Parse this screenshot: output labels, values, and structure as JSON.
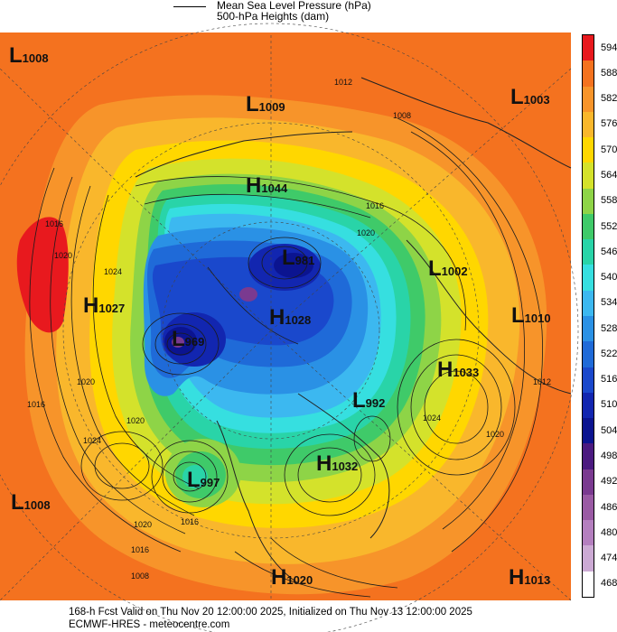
{
  "legend": {
    "mslp_label": "Mean Sea Level Pressure (hPa)",
    "heights_label": "500-hPa Heights (dam)"
  },
  "colorbar": {
    "ticks": [
      "594",
      "588",
      "582",
      "576",
      "570",
      "564",
      "558",
      "552",
      "546",
      "540",
      "534",
      "528",
      "522",
      "516",
      "510",
      "504",
      "498",
      "492",
      "486",
      "480",
      "474",
      "468"
    ],
    "colors": [
      "#e8191e",
      "#f4721f",
      "#f7942a",
      "#f9b72c",
      "#ffd700",
      "#d4e22b",
      "#8ed447",
      "#3fca69",
      "#29d4a8",
      "#36dfe0",
      "#3cb8f0",
      "#2a91e5",
      "#1f6ad8",
      "#1a48cc",
      "#1226b0",
      "#0b1490",
      "#4b1a80",
      "#7a3a90",
      "#9a5aa4",
      "#b47fbf",
      "#ccaad4",
      "#ffffff"
    ]
  },
  "pressure_centers": [
    {
      "type": "L",
      "value": "1008"
    },
    {
      "type": "L",
      "value": "1009"
    },
    {
      "type": "L",
      "value": "1003"
    },
    {
      "type": "H",
      "value": "1044"
    },
    {
      "type": "L",
      "value": "981"
    },
    {
      "type": "L",
      "value": "1002"
    },
    {
      "type": "H",
      "value": "1027"
    },
    {
      "type": "H",
      "value": "1028"
    },
    {
      "type": "L",
      "value": "1010"
    },
    {
      "type": "L",
      "value": "969"
    },
    {
      "type": "H",
      "value": "1033"
    },
    {
      "type": "L",
      "value": "992"
    },
    {
      "type": "H",
      "value": "1032"
    },
    {
      "type": "L",
      "value": "997"
    },
    {
      "type": "L",
      "value": "1008"
    },
    {
      "type": "H",
      "value": "1020"
    },
    {
      "type": "H",
      "value": "1013"
    }
  ],
  "contour_labels": [
    "1012",
    "1008",
    "1016",
    "1020",
    "1024",
    "1020",
    "1016",
    "1020",
    "1024",
    "1016",
    "1020",
    "1024",
    "1016",
    "1020",
    "1008",
    "1012",
    "1016",
    "1020"
  ],
  "footer": {
    "line1": "168-h Fcst Valid on Thu Nov 20 12:00:00 2025, Initialized on Thu Nov 13 12:00:00 2025",
    "line2": "ECMWF-HRES - meteocentre.com"
  }
}
